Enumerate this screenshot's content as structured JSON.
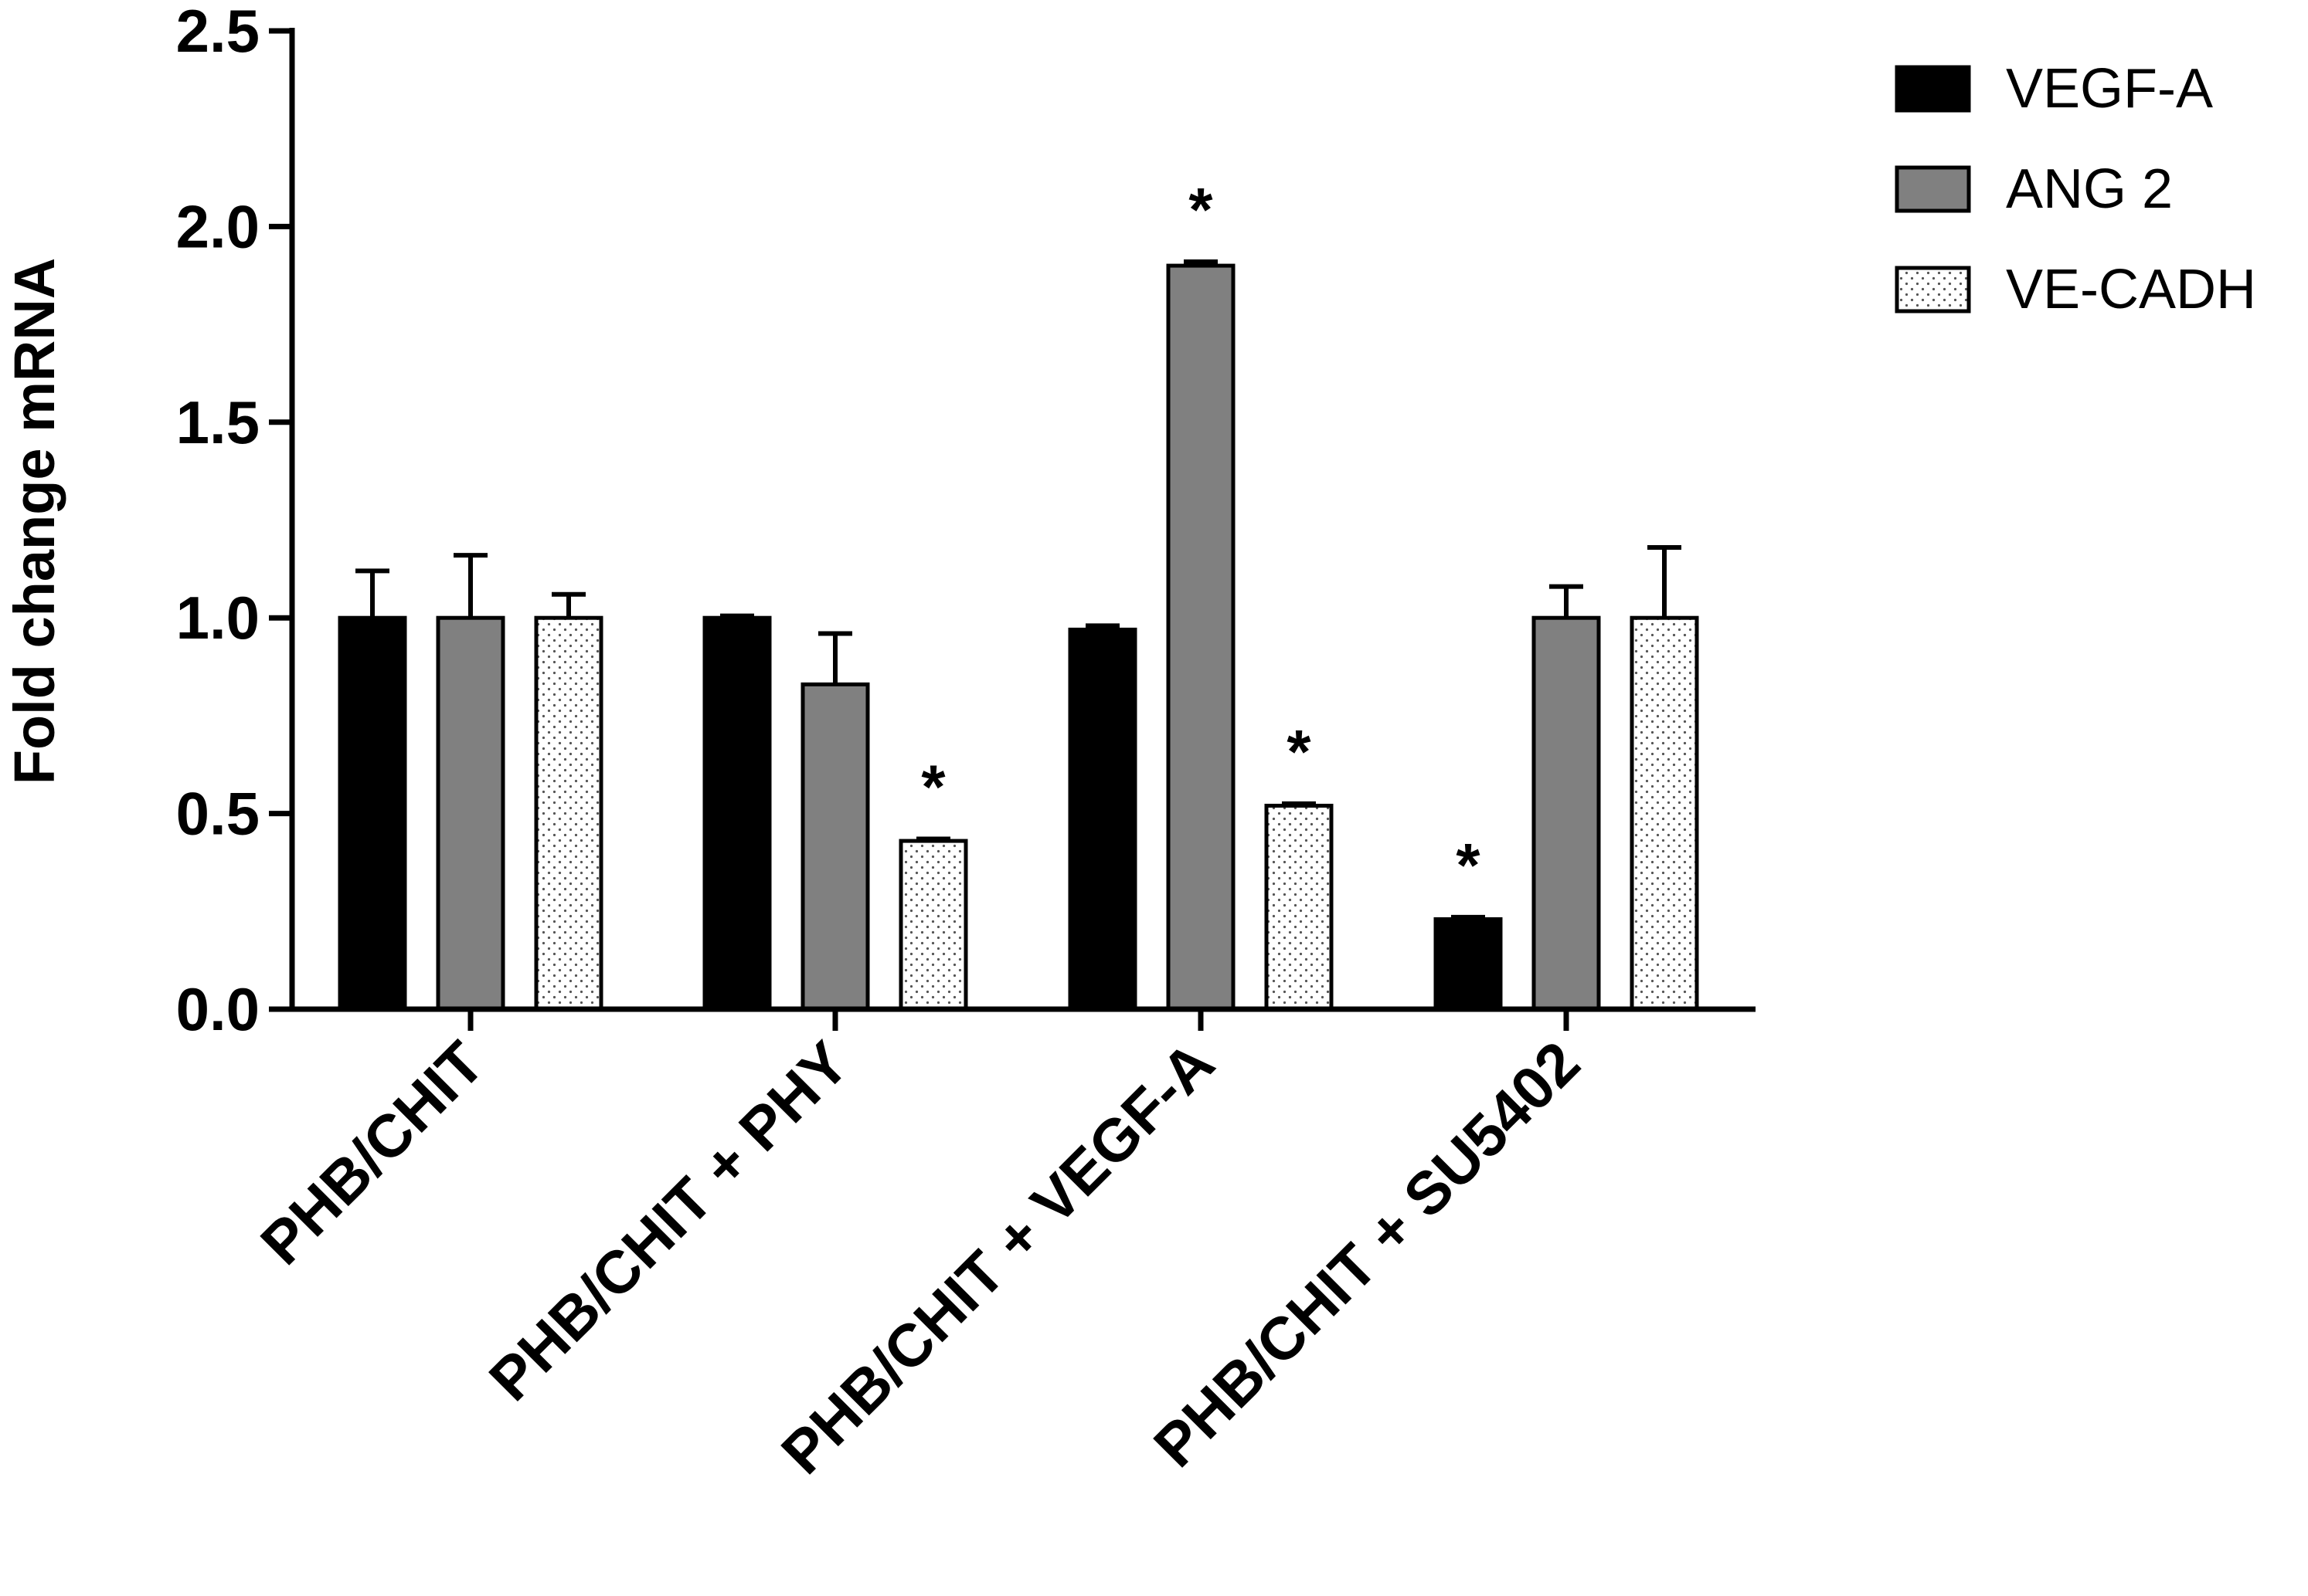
{
  "chart_data": {
    "type": "bar",
    "title": "",
    "xlabel": "",
    "ylabel": "Fold change mRNA",
    "ylim": [
      0,
      2.5
    ],
    "yticks": [
      "0.0",
      "0.5",
      "1.0",
      "1.5",
      "2.0",
      "2.5"
    ],
    "categories": [
      "PHB/CHIT",
      "PHB/CHIT + PHY",
      "PHB/CHIT + VEGF-A",
      "PHB/CHIT + SU5402"
    ],
    "series": [
      {
        "name": "VEGF-A",
        "fill": "#000000",
        "pattern": "solid",
        "values": [
          1.0,
          1.0,
          0.97,
          0.23
        ],
        "errors": [
          0.12,
          0.005,
          0.01,
          0.005
        ],
        "significant": [
          false,
          false,
          false,
          true
        ]
      },
      {
        "name": "ANG 2",
        "fill": "#808080",
        "pattern": "solid",
        "values": [
          1.0,
          0.83,
          1.9,
          1.0
        ],
        "errors": [
          0.16,
          0.13,
          0.01,
          0.08
        ],
        "significant": [
          false,
          false,
          true,
          false
        ]
      },
      {
        "name": "VE-CADH",
        "fill": "#ffffff",
        "pattern": "dotted",
        "values": [
          1.0,
          0.43,
          0.52,
          1.0
        ],
        "errors": [
          0.06,
          0.005,
          0.005,
          0.18
        ],
        "significant": [
          false,
          true,
          true,
          false
        ]
      }
    ],
    "significance_marker": "*",
    "legend_position": "top-right"
  }
}
